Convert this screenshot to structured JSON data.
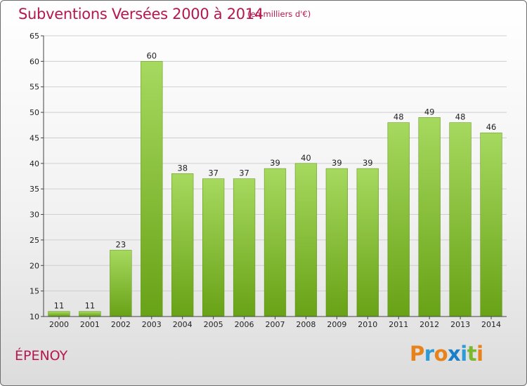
{
  "header": {
    "title": "Subventions Versées 2000 à 2014",
    "subtitle": "(en milliers d'€)"
  },
  "footer": {
    "commune": "ÉPENOY",
    "logo_text": "Proxiti"
  },
  "colors": {
    "title": "#b5174f",
    "bar_light": "#a6d95f",
    "bar_dark": "#68a216",
    "grid": "#cfcfcf",
    "logo_letters": [
      "#e8821a",
      "#2f9bd6",
      "#e8821a",
      "#1a7fc9",
      "#2f9bd6",
      "#7cb82f",
      "#e8821a"
    ]
  },
  "chart_data": {
    "type": "bar",
    "categories": [
      "2000",
      "2001",
      "2002",
      "2003",
      "2004",
      "2005",
      "2006",
      "2007",
      "2008",
      "2009",
      "2010",
      "2011",
      "2012",
      "2013",
      "2014"
    ],
    "values": [
      11,
      11,
      23,
      60,
      38,
      37,
      37,
      39,
      40,
      39,
      39,
      48,
      49,
      48,
      46
    ],
    "ylim": [
      10,
      65
    ],
    "yticks": [
      10,
      15,
      20,
      25,
      30,
      35,
      40,
      45,
      50,
      55,
      60,
      65
    ],
    "grid": true,
    "data_labels": true
  }
}
